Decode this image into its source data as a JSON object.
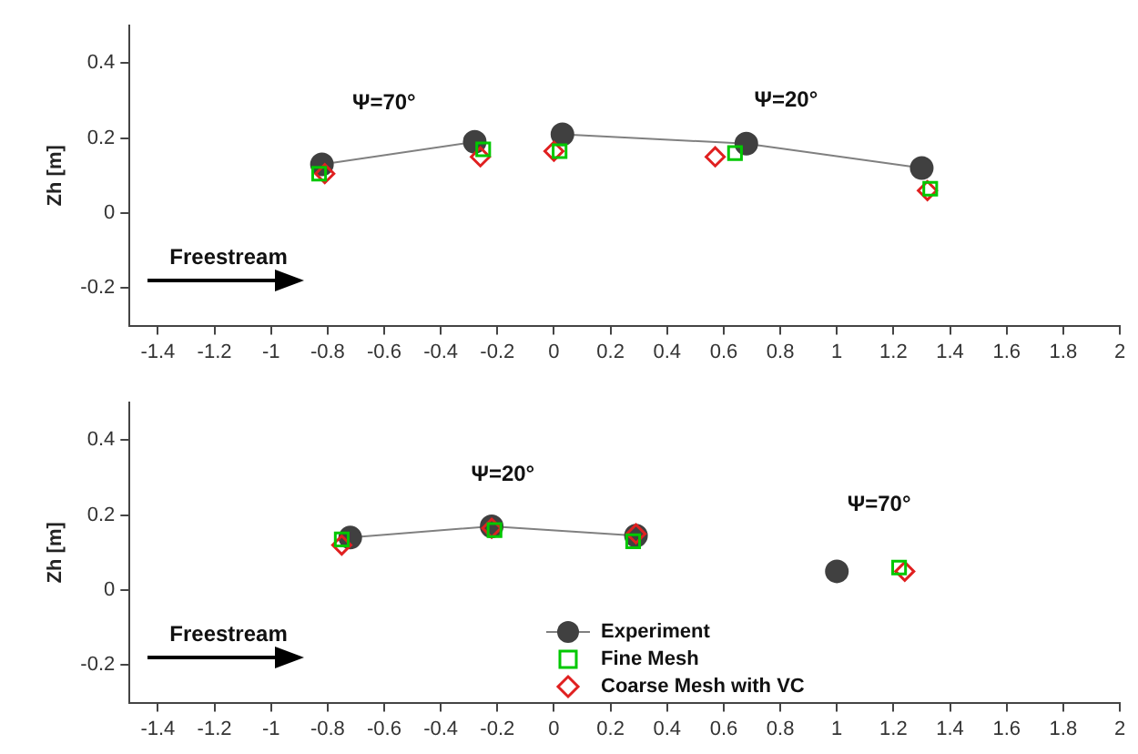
{
  "chart_data": [
    {
      "type": "scatter",
      "ylabel": "Zh [m]",
      "xlim": [
        -1.5,
        2
      ],
      "ylim": [
        -0.3,
        0.5
      ],
      "xticks": [
        -1.4,
        -1.2,
        -1,
        -0.8,
        -0.6,
        -0.4,
        -0.2,
        0,
        0.2,
        0.4,
        0.6,
        0.8,
        1,
        1.2,
        1.4,
        1.6,
        1.8,
        2
      ],
      "yticks": [
        -0.2,
        0,
        0.2,
        0.4
      ],
      "grid": false,
      "annotations": [
        "Ψ=70°",
        "Ψ=20°",
        "Freestream"
      ],
      "series": [
        {
          "type": "line",
          "marker": "circle",
          "color": "#404040",
          "x": [
            -0.82,
            -0.28,
            -0.12,
            0.03,
            0.68,
            1.3
          ],
          "values": [
            0.13,
            0.19,
            null,
            0.21,
            0.185,
            0.12
          ]
        },
        {
          "marker": "square",
          "color": "#00c800",
          "x": [
            -0.83,
            -0.25,
            0.02,
            0.64,
            1.33
          ],
          "values": [
            0.105,
            0.17,
            0.165,
            0.16,
            0.065
          ]
        },
        {
          "marker": "diamond",
          "color": "#e02020",
          "x": [
            -0.81,
            -0.26,
            0,
            0.57,
            1.32
          ],
          "values": [
            0.105,
            0.15,
            0.165,
            0.15,
            0.06
          ]
        }
      ]
    },
    {
      "type": "scatter",
      "ylabel": "Zh [m]",
      "xlim": [
        -1.5,
        2
      ],
      "ylim": [
        -0.3,
        0.5
      ],
      "xticks": [
        -1.4,
        -1.2,
        -1,
        -0.8,
        -0.6,
        -0.4,
        -0.2,
        0,
        0.2,
        0.4,
        0.6,
        0.8,
        1,
        1.2,
        1.4,
        1.6,
        1.8,
        2
      ],
      "yticks": [
        -0.2,
        0,
        0.2,
        0.4
      ],
      "grid": false,
      "legend": "bottom",
      "annotations": [
        "Ψ=20°",
        "Ψ=70°",
        "Freestream"
      ],
      "series": [
        {
          "type": "line",
          "name": "Experiment",
          "marker": "circle",
          "color": "#404040",
          "x": [
            -0.72,
            -0.22,
            0.29,
            0.65,
            1.0
          ],
          "values": [
            0.14,
            0.17,
            0.145,
            null,
            0.05
          ]
        },
        {
          "name": "Fine Mesh",
          "marker": "square",
          "color": "#00c800",
          "x": [
            -0.75,
            -0.21,
            0.28,
            1.22
          ],
          "values": [
            0.135,
            0.16,
            0.13,
            0.06
          ]
        },
        {
          "name": "Coarse Mesh with VC",
          "marker": "diamond",
          "color": "#e02020",
          "x": [
            -0.75,
            -0.22,
            0.29,
            1.24
          ],
          "values": [
            0.12,
            0.165,
            0.15,
            0.05
          ]
        }
      ]
    }
  ]
}
